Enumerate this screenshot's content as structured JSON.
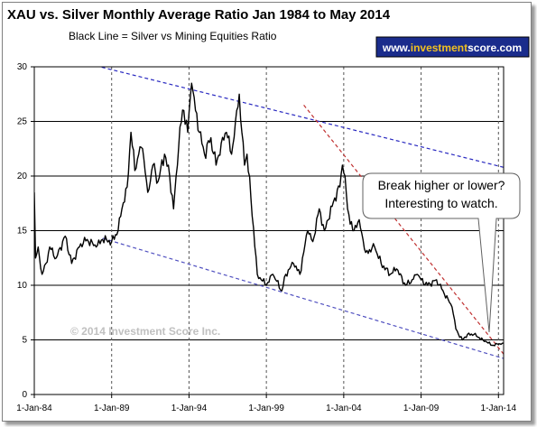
{
  "chart_data": {
    "type": "line",
    "title": "XAU vs. Silver Monthly Average Ratio Jan 1984 to May 2014",
    "subtitle": "Black Line = Silver vs Mining Equities Ratio",
    "xlabel": "",
    "ylabel": "",
    "ylim": [
      0,
      30
    ],
    "yticks": [
      0,
      5,
      10,
      15,
      20,
      25,
      30
    ],
    "xlim": [
      "1984-01",
      "2014-05"
    ],
    "xticks": [
      "1-Jan-84",
      "1-Jan-89",
      "1-Jan-94",
      "1-Jan-99",
      "1-Jan-04",
      "1-Jan-09",
      "1-Jan-14"
    ],
    "grid": "horizontal solid, vertical dashed",
    "legend": "none",
    "series": [
      {
        "color": "#000000",
        "x": [
          "1984-01",
          "1984-02",
          "1984-04",
          "1984-07",
          "1984-10",
          "1985-01",
          "1985-06",
          "1986-01",
          "1986-06",
          "1987-01",
          "1987-06",
          "1988-01",
          "1988-06",
          "1989-01",
          "1989-06",
          "1989-09",
          "1990-01",
          "1990-04",
          "1990-07",
          "1990-10",
          "1991-01",
          "1991-05",
          "1991-09",
          "1992-01",
          "1992-06",
          "1992-10",
          "1993-01",
          "1993-04",
          "1993-06",
          "1993-09",
          "1993-12",
          "1994-03",
          "1994-06",
          "1994-09",
          "1995-01",
          "1995-06",
          "1995-10",
          "1996-02",
          "1996-06",
          "1996-10",
          "1997-01",
          "1997-04",
          "1997-06",
          "1997-08",
          "1997-10",
          "1998-01",
          "1998-06",
          "1999-01",
          "1999-06",
          "2000-01",
          "2000-04",
          "2000-10",
          "2001-03",
          "2001-09",
          "2002-01",
          "2002-06",
          "2002-10",
          "2003-01",
          "2003-06",
          "2003-10",
          "2003-12",
          "2004-02",
          "2004-04",
          "2004-08",
          "2005-01",
          "2005-06",
          "2006-01",
          "2006-06",
          "2007-01",
          "2007-06",
          "2008-01",
          "2008-06",
          "2008-10",
          "2009-01",
          "2009-06",
          "2010-01",
          "2010-06",
          "2011-01",
          "2011-04",
          "2011-06",
          "2011-09",
          "2012-01",
          "2012-06",
          "2013-01",
          "2013-04",
          "2013-08",
          "2014-01",
          "2014-05"
        ],
        "values": [
          18.5,
          12.5,
          13.5,
          11,
          12,
          13.5,
          12.5,
          14.5,
          12,
          13.8,
          14.2,
          13.5,
          14.2,
          14,
          15,
          17,
          19,
          24,
          20.5,
          22,
          22.5,
          18.5,
          21,
          19.5,
          22,
          20,
          17,
          21,
          24.5,
          26,
          24,
          28.5,
          26,
          24,
          22,
          23.5,
          21,
          23,
          24,
          22,
          25,
          27.5,
          24,
          21,
          22,
          18,
          11,
          10,
          11,
          9.5,
          11,
          12,
          11,
          15,
          14,
          17,
          15,
          16,
          18,
          19,
          21,
          20,
          17,
          15,
          16,
          13,
          13.5,
          12,
          11,
          11.5,
          10,
          10.5,
          11,
          10.5,
          10,
          10.5,
          9.5,
          8,
          6,
          5.5,
          5,
          5.5,
          5.5,
          5,
          4.8,
          4.5,
          4.6,
          4.7
        ]
      }
    ],
    "annotations": [
      {
        "kind": "upper-channel",
        "style": "dashed",
        "color": "#2828c0",
        "from": [
          "1984-01",
          31.5
        ],
        "to": [
          "2014-05",
          20.8
        ]
      },
      {
        "kind": "lower-channel",
        "style": "dashed",
        "color": "#5050c0",
        "from": [
          "1988-06",
          14.3
        ],
        "to": [
          "2014-05",
          3.3
        ]
      },
      {
        "kind": "resistance",
        "style": "dashed",
        "color": "#c03030",
        "from": [
          "2001-06",
          26.5
        ],
        "to": [
          "2014-05",
          3.7
        ]
      },
      {
        "kind": "callout",
        "text_lines": [
          "Break higher or lower?",
          "Interesting to watch."
        ],
        "points_to": [
          "2014-01",
          4.8
        ]
      },
      {
        "kind": "watermark",
        "text": "© 2014 Investment Score Inc."
      }
    ]
  },
  "badge": {
    "prefix": "www.",
    "accent": "investment",
    "suffix": "score.com"
  }
}
